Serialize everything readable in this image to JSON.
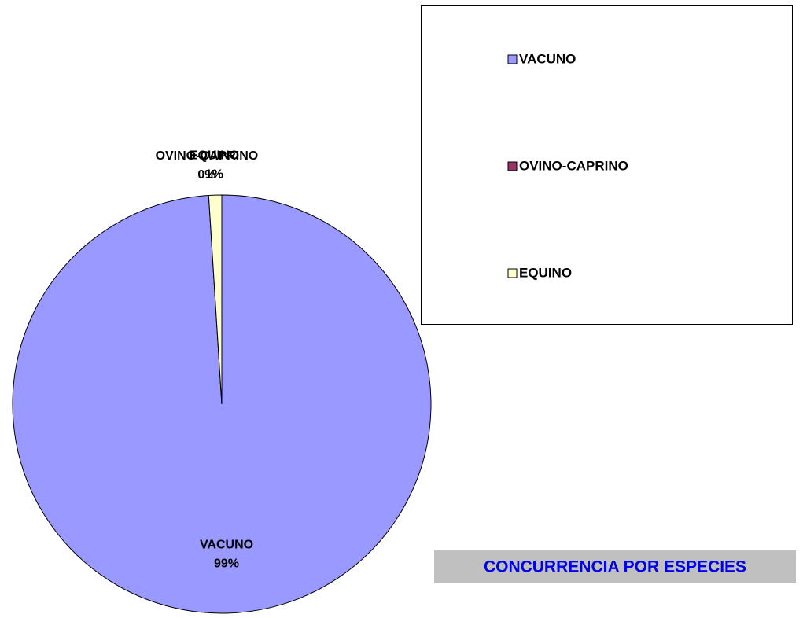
{
  "chart_data": {
    "type": "pie",
    "title": "CONCURRENCIA POR ESPECIES",
    "categories": [
      "VACUNO",
      "OVINO-CAPRINO",
      "EQUINO"
    ],
    "values": [
      99,
      0,
      1
    ],
    "value_labels": [
      "99%",
      "0%",
      "1%"
    ],
    "colors": [
      "#9999ff",
      "#993366",
      "#ffffcc"
    ],
    "legend": "right"
  }
}
